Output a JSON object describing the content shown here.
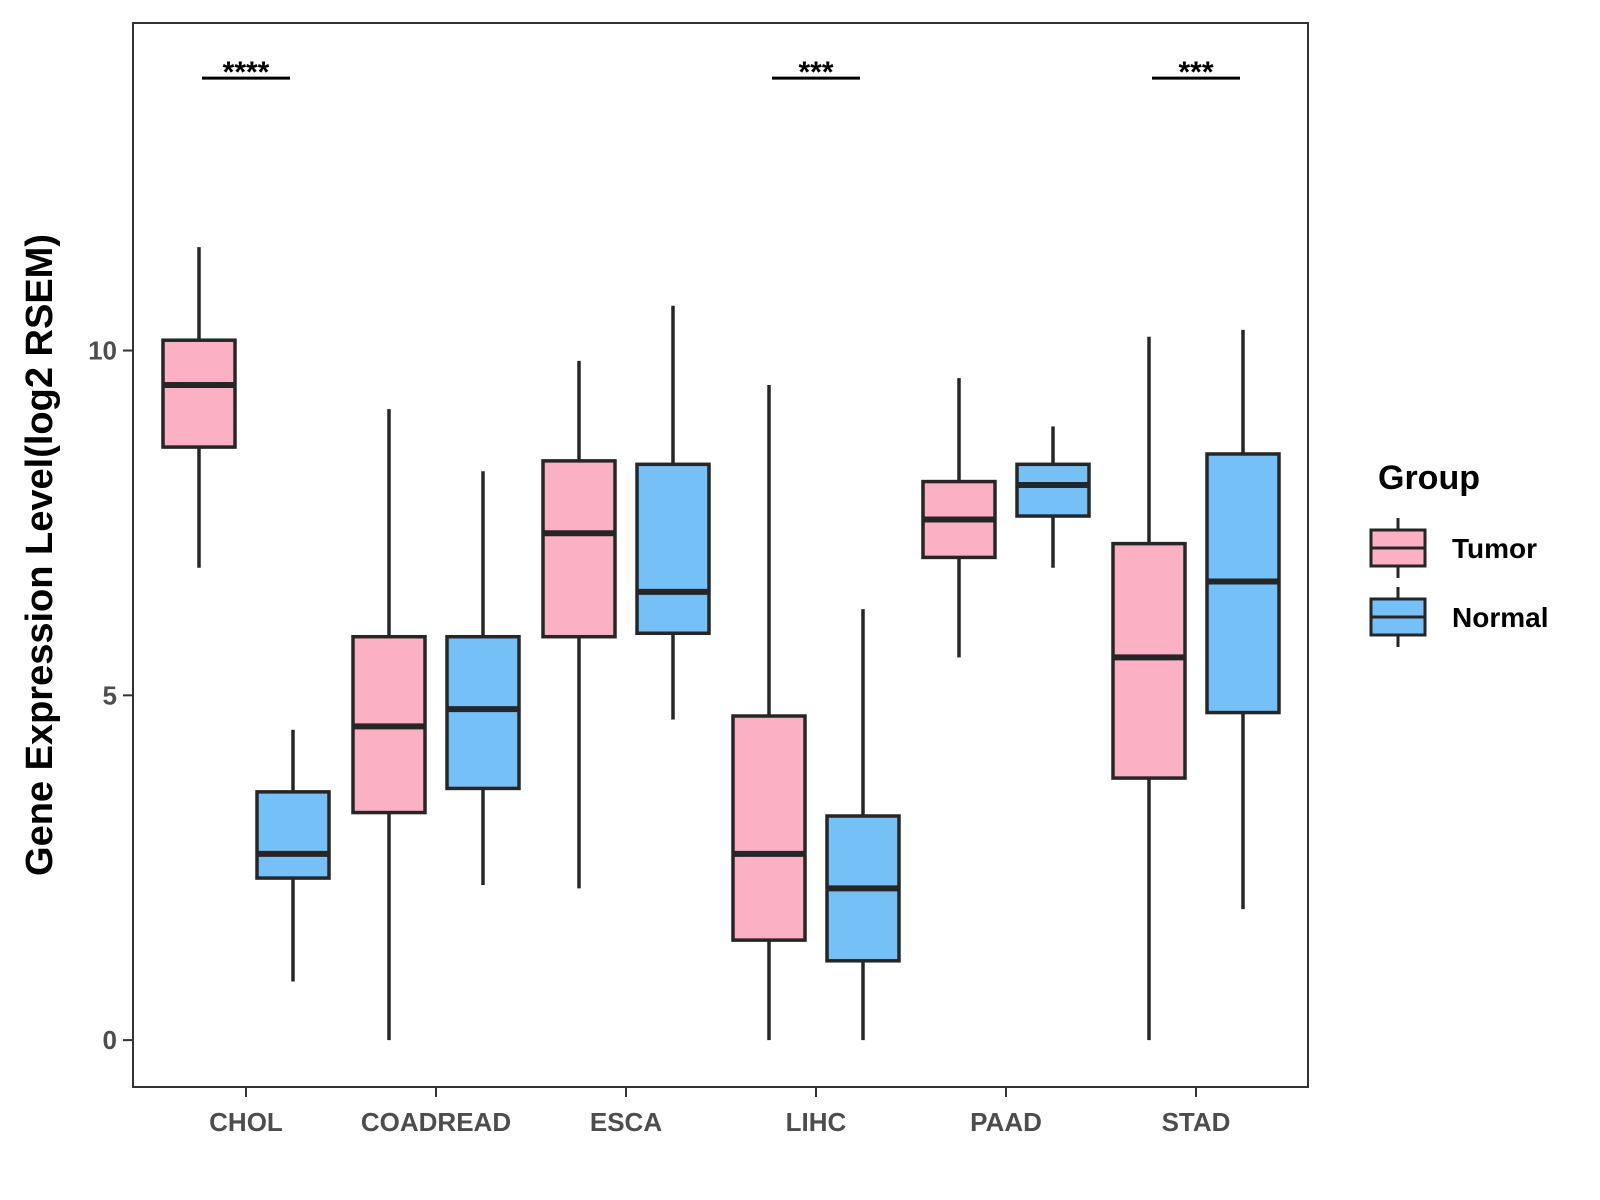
{
  "chart_data": {
    "type": "box",
    "title": "",
    "xlabel": "",
    "ylabel": "Gene Expression Level(log2 RSEM)",
    "ylim": [
      -0.68,
      14.75
    ],
    "yticks": [
      0,
      5,
      10
    ],
    "categories": [
      "CHOL",
      "COADREAD",
      "ESCA",
      "LIHC",
      "PAAD",
      "STAD"
    ],
    "legend": {
      "title": "Group",
      "position": "right",
      "items": [
        {
          "name": "Tumor",
          "color": "#FBB1C3"
        },
        {
          "name": "Normal",
          "color": "#76C0F8"
        }
      ]
    },
    "series": [
      {
        "name": "Tumor",
        "color": "#FBB1C3",
        "boxes": [
          {
            "category": "CHOL",
            "min": 6.85,
            "q1": 8.6,
            "median": 9.5,
            "q3": 10.15,
            "max": 11.5
          },
          {
            "category": "COADREAD",
            "min": 0.0,
            "q1": 3.3,
            "median": 4.55,
            "q3": 5.85,
            "max": 9.15
          },
          {
            "category": "ESCA",
            "min": 2.2,
            "q1": 5.85,
            "median": 7.35,
            "q3": 8.4,
            "max": 9.85
          },
          {
            "category": "LIHC",
            "min": 0.0,
            "q1": 1.45,
            "median": 2.7,
            "q3": 4.7,
            "max": 9.5
          },
          {
            "category": "PAAD",
            "min": 5.55,
            "q1": 7.0,
            "median": 7.55,
            "q3": 8.1,
            "max": 9.6
          },
          {
            "category": "STAD",
            "min": 0.0,
            "q1": 3.8,
            "median": 5.55,
            "q3": 7.2,
            "max": 10.2
          }
        ]
      },
      {
        "name": "Normal",
        "color": "#76C0F8",
        "boxes": [
          {
            "category": "CHOL",
            "min": 0.85,
            "q1": 2.35,
            "median": 2.7,
            "q3": 3.6,
            "max": 4.5
          },
          {
            "category": "COADREAD",
            "min": 2.25,
            "q1": 3.65,
            "median": 4.8,
            "q3": 5.85,
            "max": 8.25
          },
          {
            "category": "ESCA",
            "min": 4.65,
            "q1": 5.9,
            "median": 6.5,
            "q3": 8.35,
            "max": 10.65
          },
          {
            "category": "LIHC",
            "min": 0.0,
            "q1": 1.15,
            "median": 2.2,
            "q3": 3.25,
            "max": 6.25
          },
          {
            "category": "PAAD",
            "min": 6.85,
            "q1": 7.6,
            "median": 8.05,
            "q3": 8.35,
            "max": 8.9
          },
          {
            "category": "STAD",
            "min": 1.9,
            "q1": 4.75,
            "median": 6.65,
            "q3": 8.5,
            "max": 10.3
          }
        ]
      }
    ],
    "significance": [
      {
        "category": "CHOL",
        "label": "****",
        "y": 13.95
      },
      {
        "category": "LIHC",
        "label": "***",
        "y": 13.95
      },
      {
        "category": "STAD",
        "label": "***",
        "y": 13.95
      }
    ]
  }
}
